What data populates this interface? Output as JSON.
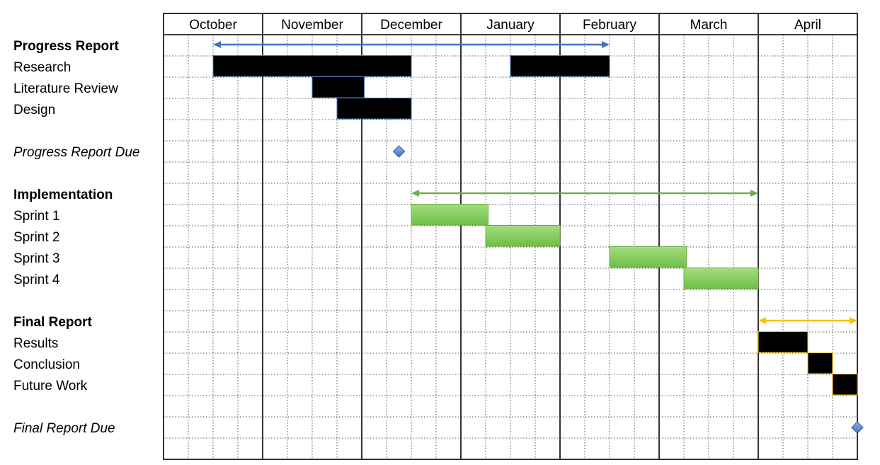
{
  "chart_data": {
    "type": "gantt",
    "title": "",
    "months": [
      "October",
      "November",
      "December",
      "January",
      "February",
      "March",
      "April"
    ],
    "weeks_per_month": 4,
    "grid": true,
    "colors": {
      "Progress Report": "#4472C4",
      "Implementation": "#70AD47",
      "Final Report": "#FFC000",
      "milestone": "#4472C4"
    },
    "rows": [
      {
        "label": "Progress Report",
        "kind": "group",
        "span": [
          2,
          18
        ],
        "color_key": "Progress Report"
      },
      {
        "label": "Research",
        "kind": "task",
        "bars": [
          [
            2,
            10
          ],
          [
            14,
            18
          ]
        ],
        "color_key": "Progress Report"
      },
      {
        "label": "Literature Review",
        "kind": "task",
        "bars": [
          [
            6,
            8.1
          ]
        ],
        "color_key": "Progress Report"
      },
      {
        "label": "Design",
        "kind": "task",
        "bars": [
          [
            7,
            10
          ]
        ],
        "color_key": "Progress Report"
      },
      {
        "label": "",
        "kind": "blank"
      },
      {
        "label": "Progress Report Due",
        "kind": "milestone",
        "at": 9.5,
        "color_key": "milestone"
      },
      {
        "label": "",
        "kind": "blank"
      },
      {
        "label": "Implementation",
        "kind": "group",
        "span": [
          10,
          24
        ],
        "color_key": "Implementation"
      },
      {
        "label": "Sprint 1",
        "kind": "task",
        "bars": [
          [
            10,
            13.1
          ]
        ],
        "color_key": "Implementation"
      },
      {
        "label": "Sprint 2",
        "kind": "task",
        "bars": [
          [
            13,
            16
          ]
        ],
        "color_key": "Implementation"
      },
      {
        "label": "Sprint 3",
        "kind": "task",
        "bars": [
          [
            18,
            21.1
          ]
        ],
        "color_key": "Implementation"
      },
      {
        "label": "Sprint 4",
        "kind": "task",
        "bars": [
          [
            21,
            24
          ]
        ],
        "color_key": "Implementation"
      },
      {
        "label": "",
        "kind": "blank"
      },
      {
        "label": "Final Report",
        "kind": "group",
        "span": [
          24,
          28
        ],
        "color_key": "Final Report"
      },
      {
        "label": "Results",
        "kind": "task",
        "bars": [
          [
            24,
            26
          ]
        ],
        "color_key": "Final Report"
      },
      {
        "label": "Conclusion",
        "kind": "task",
        "bars": [
          [
            26,
            27
          ]
        ],
        "color_key": "Final Report"
      },
      {
        "label": "Future Work",
        "kind": "task",
        "bars": [
          [
            27,
            28
          ]
        ],
        "color_key": "Final Report"
      },
      {
        "label": "",
        "kind": "blank"
      },
      {
        "label": "Final Report Due",
        "kind": "milestone",
        "at": 28,
        "color_key": "milestone"
      },
      {
        "label": "",
        "kind": "blank"
      }
    ]
  }
}
